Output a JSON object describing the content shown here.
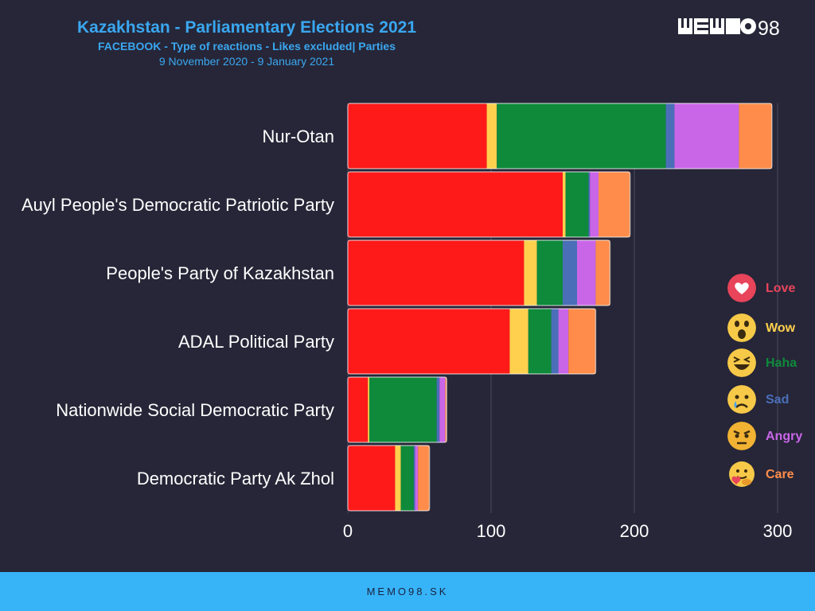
{
  "header": {
    "title": "Kazakhstan - Parliamentary Elections 2021",
    "subtitle": "FACEBOOK - Type of reactions - Likes excluded| Parties",
    "date_range": "9 November 2020 - 9 January 2021"
  },
  "brand": {
    "logo_text": "MEMO98",
    "footer_text": "MEMO98.SK"
  },
  "legend": [
    {
      "label": "Love",
      "color": "#e8445a",
      "icon": "love-icon"
    },
    {
      "label": "Wow",
      "color": "#ffd04d",
      "icon": "wow-icon"
    },
    {
      "label": "Haha",
      "color": "#0e8a3a",
      "icon": "haha-icon"
    },
    {
      "label": "Sad",
      "color": "#4a6fb8",
      "icon": "sad-icon"
    },
    {
      "label": "Angry",
      "color": "#c966e8",
      "icon": "angry-icon"
    },
    {
      "label": "Care",
      "color": "#ff8c4a",
      "icon": "care-icon"
    }
  ],
  "chart_data": {
    "type": "bar",
    "orientation": "horizontal",
    "stacked": true,
    "categories": [
      "Nur-Otan",
      "Auyl People's Democratic Patriotic Party",
      "People's Party of Kazakhstan",
      "ADAL Political Party",
      "Nationwide Social Democratic Party",
      "Democratic Party Ak Zhol"
    ],
    "series": [
      {
        "name": "Love",
        "color": "#ff1a1a",
        "values": [
          97,
          150,
          123,
          113,
          14,
          33
        ]
      },
      {
        "name": "Wow",
        "color": "#ffd04d",
        "values": [
          7,
          2,
          9,
          13,
          1,
          4
        ]
      },
      {
        "name": "Haha",
        "color": "#0e8a3a",
        "values": [
          118,
          16,
          18,
          16,
          47,
          9
        ]
      },
      {
        "name": "Sad",
        "color": "#4a6fb8",
        "values": [
          6,
          1,
          10,
          5,
          2,
          1
        ]
      },
      {
        "name": "Angry",
        "color": "#c966e8",
        "values": [
          45,
          6,
          13,
          7,
          4,
          2
        ]
      },
      {
        "name": "Care",
        "color": "#ff8c4a",
        "values": [
          23,
          22,
          10,
          19,
          1,
          8
        ]
      }
    ],
    "xlim": [
      0,
      300
    ],
    "xticks": [
      0,
      100,
      200,
      300
    ],
    "grid": true,
    "legend_position": "right"
  }
}
